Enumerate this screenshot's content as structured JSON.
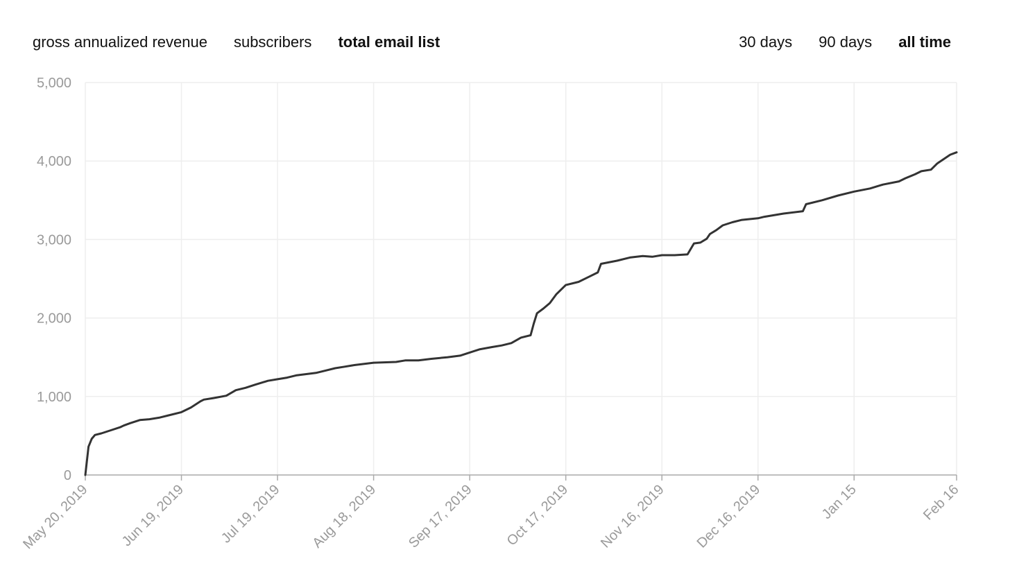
{
  "metric_tabs": [
    {
      "label": "gross annualized revenue",
      "active": false
    },
    {
      "label": "subscribers",
      "active": false
    },
    {
      "label": "total email list",
      "active": true
    }
  ],
  "range_tabs": [
    {
      "label": "30 days",
      "active": false
    },
    {
      "label": "90 days",
      "active": false
    },
    {
      "label": "all time",
      "active": true
    }
  ],
  "colors": {
    "line": "#333333",
    "grid": "#eeeeee",
    "axis": "#aaaaaa",
    "tick_text": "#9a9a9a"
  },
  "chart_data": {
    "type": "line",
    "title": "",
    "xlabel": "",
    "ylabel": "",
    "ylim": [
      0,
      5000
    ],
    "xlim": [
      "2019-05-20",
      "2020-02-16"
    ],
    "grid": true,
    "y_ticks": [
      0,
      1000,
      2000,
      3000,
      4000,
      5000
    ],
    "y_tick_labels": [
      "0",
      "1,000",
      "2,000",
      "3,000",
      "4,000",
      "5,000"
    ],
    "x_ticks": [
      "2019-05-20",
      "2019-06-19",
      "2019-07-19",
      "2019-08-18",
      "2019-09-17",
      "2019-10-17",
      "2019-11-16",
      "2019-12-16",
      "2020-01-15",
      "2020-02-16"
    ],
    "x_tick_labels": [
      "May 20, 2019",
      "Jun 19, 2019",
      "Jul 19, 2019",
      "Aug 18, 2019",
      "Sep 17, 2019",
      "Oct 17, 2019",
      "Nov 16, 2019",
      "Dec 16, 2019",
      "Jan 15",
      "Feb 16"
    ],
    "series": [
      {
        "x": [
          "2019-05-20",
          "2019-05-21",
          "2019-05-22",
          "2019-05-23",
          "2019-05-25",
          "2019-05-28",
          "2019-05-31",
          "2019-06-01",
          "2019-06-03",
          "2019-06-06",
          "2019-06-09",
          "2019-06-12",
          "2019-06-15",
          "2019-06-19",
          "2019-06-22",
          "2019-06-25",
          "2019-06-26",
          "2019-06-29",
          "2019-07-03",
          "2019-07-06",
          "2019-07-09",
          "2019-07-12",
          "2019-07-16",
          "2019-07-19",
          "2019-07-22",
          "2019-07-25",
          "2019-07-31",
          "2019-08-03",
          "2019-08-06",
          "2019-08-09",
          "2019-08-12",
          "2019-08-18",
          "2019-08-25",
          "2019-08-28",
          "2019-09-01",
          "2019-09-05",
          "2019-09-10",
          "2019-09-14",
          "2019-09-17",
          "2019-09-20",
          "2019-09-24",
          "2019-09-27",
          "2019-09-30",
          "2019-10-03",
          "2019-10-06",
          "2019-10-07",
          "2019-10-08",
          "2019-10-10",
          "2019-10-12",
          "2019-10-14",
          "2019-10-17",
          "2019-10-21",
          "2019-10-24",
          "2019-10-27",
          "2019-10-28",
          "2019-11-02",
          "2019-11-06",
          "2019-11-10",
          "2019-11-13",
          "2019-11-16",
          "2019-11-20",
          "2019-11-24",
          "2019-11-26",
          "2019-11-28",
          "2019-11-30",
          "2019-12-01",
          "2019-12-03",
          "2019-12-05",
          "2019-12-08",
          "2019-12-11",
          "2019-12-16",
          "2019-12-18",
          "2019-12-24",
          "2019-12-30",
          "2019-12-31",
          "2020-01-05",
          "2020-01-10",
          "2020-01-15",
          "2020-01-20",
          "2020-01-24",
          "2020-01-29",
          "2020-01-31",
          "2020-02-03",
          "2020-02-05",
          "2020-02-08",
          "2020-02-10",
          "2020-02-14",
          "2020-02-16"
        ],
        "values": [
          0,
          360,
          460,
          510,
          530,
          570,
          610,
          630,
          660,
          700,
          710,
          730,
          760,
          800,
          860,
          940,
          960,
          980,
          1010,
          1080,
          1110,
          1150,
          1200,
          1220,
          1240,
          1270,
          1300,
          1330,
          1360,
          1380,
          1400,
          1430,
          1440,
          1460,
          1460,
          1480,
          1500,
          1520,
          1560,
          1600,
          1630,
          1650,
          1680,
          1750,
          1780,
          1930,
          2060,
          2120,
          2190,
          2300,
          2420,
          2460,
          2520,
          2580,
          2690,
          2730,
          2770,
          2790,
          2780,
          2800,
          2800,
          2810,
          2950,
          2960,
          3010,
          3070,
          3120,
          3180,
          3220,
          3250,
          3270,
          3290,
          3330,
          3360,
          3450,
          3500,
          3560,
          3610,
          3650,
          3700,
          3740,
          3780,
          3830,
          3870,
          3890,
          3970,
          4080,
          4110
        ]
      }
    ]
  }
}
